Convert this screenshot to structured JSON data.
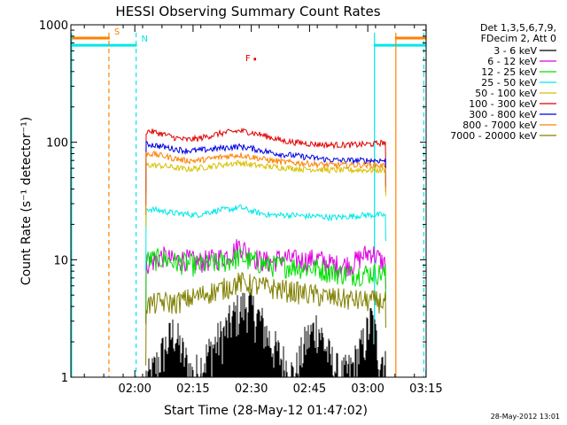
{
  "chart_data": {
    "type": "line",
    "title": "HESSI Observing Summary Count Rates",
    "xlabel": "Start Time (28-May-12 01:47:02)",
    "ylabel": "Count Rate (s⁻¹ detector⁻¹)",
    "ylog": true,
    "ylim": [
      1,
      1000
    ],
    "xlim_minutes": [
      -3.5,
      88
    ],
    "yticks": [
      {
        "value": 1,
        "label": "1"
      },
      {
        "value": 10,
        "label": "10"
      },
      {
        "value": 100,
        "label": "100"
      },
      {
        "value": 1000,
        "label": "1000"
      }
    ],
    "xticks": [
      {
        "minute": 12.97,
        "label": "02:00"
      },
      {
        "minute": 27.97,
        "label": "02:15"
      },
      {
        "minute": 42.97,
        "label": "02:30"
      },
      {
        "minute": 57.97,
        "label": "02:45"
      },
      {
        "minute": 72.97,
        "label": "03:00"
      },
      {
        "minute": 87.97,
        "label": "03:15"
      }
    ],
    "legend": {
      "placement": "right",
      "header": [
        "Det 1,3,5,6,7,9,",
        "FDecim 2, Att 0"
      ],
      "entries": [
        {
          "label": "3 - 6 keV",
          "color": "#000000"
        },
        {
          "label": "6 - 12 keV",
          "color": "#e000e0"
        },
        {
          "label": "12 - 25 keV",
          "color": "#00e000"
        },
        {
          "label": "25 - 50 keV",
          "color": "#00e8e8"
        },
        {
          "label": "50 - 100 keV",
          "color": "#d8c000"
        },
        {
          "label": "100 - 300 keV",
          "color": "#e00000"
        },
        {
          "label": "300 - 800 keV",
          "color": "#0000e0"
        },
        {
          "label": "800 - 7000 keV",
          "color": "#ff8000"
        },
        {
          "label": "7000 - 20000 keV",
          "color": "#808000"
        }
      ]
    },
    "series": [
      {
        "name": "3 - 6 keV",
        "color": "#000000",
        "points": [
          [
            17,
            1
          ],
          [
            20,
            1.6
          ],
          [
            23,
            2.5
          ],
          [
            26,
            1.4
          ],
          [
            28,
            1
          ],
          [
            33,
            1.8
          ],
          [
            36,
            2.4
          ],
          [
            39,
            3.5
          ],
          [
            42,
            4.3
          ],
          [
            45,
            3.2
          ],
          [
            48,
            2
          ],
          [
            51,
            1.4
          ],
          [
            54,
            1
          ],
          [
            57,
            2
          ],
          [
            60,
            2.8
          ],
          [
            63,
            1.5
          ],
          [
            66,
            1
          ],
          [
            69,
            1.2
          ],
          [
            72,
            2
          ],
          [
            74,
            3.2
          ],
          [
            76,
            1.5
          ]
        ]
      },
      {
        "name": "6 - 12 keV",
        "color": "#e000e0",
        "points": [
          [
            17,
            9.5
          ],
          [
            20,
            10.8
          ],
          [
            23,
            9.8
          ],
          [
            26,
            10.2
          ],
          [
            29,
            9.6
          ],
          [
            32,
            10
          ],
          [
            35,
            10.5
          ],
          [
            38,
            11.5
          ],
          [
            40,
            13.5
          ],
          [
            42,
            11.5
          ],
          [
            45,
            10
          ],
          [
            48,
            9.6
          ],
          [
            51,
            10.5
          ],
          [
            54,
            10
          ],
          [
            57,
            10
          ],
          [
            60,
            10.3
          ],
          [
            63,
            9.3
          ],
          [
            66,
            9
          ],
          [
            69,
            9.3
          ],
          [
            72,
            11
          ],
          [
            74,
            11.8
          ],
          [
            77,
            9.4
          ]
        ]
      },
      {
        "name": "12 - 25 keV",
        "color": "#00e000",
        "points": [
          [
            17,
            10
          ],
          [
            20,
            10.3
          ],
          [
            23,
            9.6
          ],
          [
            26,
            9.4
          ],
          [
            29,
            9
          ],
          [
            32,
            9.2
          ],
          [
            35,
            9.6
          ],
          [
            38,
            10
          ],
          [
            40,
            10.7
          ],
          [
            42,
            10
          ],
          [
            45,
            9.5
          ],
          [
            48,
            9
          ],
          [
            51,
            9
          ],
          [
            54,
            8.8
          ],
          [
            57,
            8.6
          ],
          [
            60,
            8.5
          ],
          [
            63,
            8
          ],
          [
            66,
            7.7
          ],
          [
            69,
            7.6
          ],
          [
            72,
            7.7
          ],
          [
            75,
            7.8
          ],
          [
            77,
            7.6
          ]
        ]
      },
      {
        "name": "25 - 50 keV",
        "color": "#00e8e8",
        "points": [
          [
            17,
            27
          ],
          [
            20,
            26
          ],
          [
            23,
            25
          ],
          [
            26,
            24.5
          ],
          [
            29,
            24
          ],
          [
            32,
            25.5
          ],
          [
            35,
            26.5
          ],
          [
            38,
            27
          ],
          [
            40,
            28
          ],
          [
            42,
            26.5
          ],
          [
            45,
            25
          ],
          [
            48,
            24
          ],
          [
            51,
            24
          ],
          [
            54,
            24
          ],
          [
            57,
            23.5
          ],
          [
            60,
            23.5
          ],
          [
            63,
            23
          ],
          [
            66,
            23
          ],
          [
            69,
            23.5
          ],
          [
            72,
            24
          ],
          [
            75,
            24
          ],
          [
            77,
            24
          ]
        ]
      },
      {
        "name": "50 - 100 keV",
        "color": "#d8c000",
        "points": [
          [
            17,
            64
          ],
          [
            20,
            63
          ],
          [
            23,
            61
          ],
          [
            26,
            59
          ],
          [
            29,
            60
          ],
          [
            32,
            62
          ],
          [
            35,
            64
          ],
          [
            38,
            66
          ],
          [
            40,
            67
          ],
          [
            42,
            65
          ],
          [
            45,
            63
          ],
          [
            48,
            62
          ],
          [
            51,
            61
          ],
          [
            54,
            60
          ],
          [
            57,
            59
          ],
          [
            60,
            59
          ],
          [
            63,
            58
          ],
          [
            66,
            58
          ],
          [
            69,
            58
          ],
          [
            72,
            58
          ],
          [
            75,
            58
          ],
          [
            77,
            58
          ]
        ]
      },
      {
        "name": "100 - 300 keV",
        "color": "#e00000",
        "points": [
          [
            17,
            124
          ],
          [
            20,
            118
          ],
          [
            23,
            110
          ],
          [
            26,
            105
          ],
          [
            29,
            107
          ],
          [
            32,
            113
          ],
          [
            35,
            119
          ],
          [
            38,
            123
          ],
          [
            40,
            125
          ],
          [
            42,
            123
          ],
          [
            45,
            117
          ],
          [
            48,
            110
          ],
          [
            51,
            103
          ],
          [
            54,
            100
          ],
          [
            57,
            98
          ],
          [
            60,
            96
          ],
          [
            63,
            95
          ],
          [
            66,
            95
          ],
          [
            69,
            95
          ],
          [
            72,
            96
          ],
          [
            75,
            97
          ],
          [
            77,
            100
          ]
        ]
      },
      {
        "name": "300 - 800 keV",
        "color": "#0000e0",
        "points": [
          [
            17,
            96
          ],
          [
            20,
            92
          ],
          [
            23,
            88
          ],
          [
            26,
            85
          ],
          [
            29,
            85
          ],
          [
            32,
            87
          ],
          [
            35,
            89
          ],
          [
            38,
            91
          ],
          [
            40,
            92
          ],
          [
            42,
            90
          ],
          [
            45,
            86
          ],
          [
            48,
            82
          ],
          [
            51,
            79
          ],
          [
            54,
            77
          ],
          [
            57,
            75
          ],
          [
            60,
            73
          ],
          [
            63,
            71
          ],
          [
            66,
            70
          ],
          [
            69,
            70
          ],
          [
            72,
            70
          ],
          [
            75,
            70
          ],
          [
            77,
            70
          ]
        ]
      },
      {
        "name": "800 - 7000 keV",
        "color": "#ff8000",
        "points": [
          [
            17,
            80
          ],
          [
            20,
            77
          ],
          [
            23,
            73
          ],
          [
            26,
            70
          ],
          [
            29,
            70
          ],
          [
            32,
            72
          ],
          [
            35,
            75
          ],
          [
            38,
            77
          ],
          [
            40,
            78
          ],
          [
            42,
            76
          ],
          [
            45,
            73
          ],
          [
            48,
            70
          ],
          [
            51,
            68
          ],
          [
            54,
            67
          ],
          [
            57,
            66
          ],
          [
            60,
            65
          ],
          [
            63,
            64
          ],
          [
            66,
            64
          ],
          [
            69,
            64
          ],
          [
            72,
            64
          ],
          [
            75,
            64
          ],
          [
            77,
            63
          ]
        ]
      },
      {
        "name": "7000 - 20000 keV",
        "color": "#808000",
        "points": [
          [
            17,
            4.2
          ],
          [
            20,
            4.4
          ],
          [
            23,
            4.3
          ],
          [
            26,
            4.6
          ],
          [
            29,
            4.9
          ],
          [
            32,
            5.3
          ],
          [
            35,
            5.6
          ],
          [
            38,
            6.1
          ],
          [
            40,
            6.5
          ],
          [
            42,
            6.3
          ],
          [
            45,
            6
          ],
          [
            48,
            5.8
          ],
          [
            51,
            5.6
          ],
          [
            54,
            5.4
          ],
          [
            57,
            5.2
          ],
          [
            60,
            5
          ],
          [
            63,
            4.8
          ],
          [
            66,
            4.7
          ],
          [
            69,
            4.6
          ],
          [
            72,
            4.5
          ],
          [
            75,
            4.5
          ],
          [
            77,
            4.4
          ]
        ]
      }
    ],
    "flags": [
      {
        "label": "S",
        "color": "#ff8000",
        "segments": [
          [
            -3.5,
            6.5
          ],
          [
            80,
            88
          ]
        ],
        "level": 770
      },
      {
        "label": "N",
        "color": "#00e8e8",
        "segments": [
          [
            -3.5,
            13.5
          ],
          [
            74.5,
            88
          ]
        ],
        "level": 670
      },
      {
        "label": "F",
        "color": "#e00000",
        "segments": [
          [
            43.6,
            44.2
          ]
        ],
        "level": 510
      }
    ],
    "vlines": [
      {
        "minute": -3.3,
        "color": "#00e8e8",
        "style": "solid"
      },
      {
        "minute": 6.3,
        "color": "#ff8000",
        "style": "dashed"
      },
      {
        "minute": 13.3,
        "color": "#00e8e8",
        "style": "dashed"
      },
      {
        "minute": 74.7,
        "color": "#00e8e8",
        "style": "solid"
      },
      {
        "minute": 80.2,
        "color": "#ff8000",
        "style": "solid"
      },
      {
        "minute": 87.4,
        "color": "#00e8e8",
        "style": "dashed"
      }
    ],
    "data_start_minute": 15.8,
    "data_end_minute": 77.6
  },
  "timestamp": "28-May-2012 13:01"
}
